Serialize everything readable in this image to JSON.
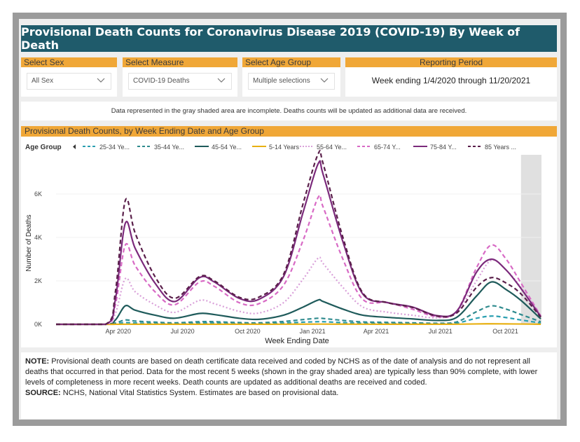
{
  "title": "Provisional Death Counts for Coronavirus Disease 2019 (COVID-19) By Week of Death",
  "filters": {
    "sex": {
      "label": "Select Sex",
      "value": "All Sex"
    },
    "measure": {
      "label": "Select Measure",
      "value": "COVID-19 Deaths"
    },
    "age_group": {
      "label": "Select Age Group",
      "value": "Multiple selections"
    },
    "period": {
      "label": "Reporting Period",
      "value": "Week ending 1/4/2020 through 11/20/2021"
    }
  },
  "notice": "Data represented in the gray shaded area are incomplete. Deaths counts will be updated as additional data are received.",
  "chart_header": "Provisional Death Counts, by Week Ending Date and Age Group",
  "note": {
    "note_label": "NOTE:",
    "note_text": " Provisional death counts are based on death certificate data received and coded by NCHS as of the date of analysis and do not represent all deaths that occurred in that period. Data for the most recent 5 weeks (shown in the gray shaded area) are typically less than 90% complete, with lower levels of completeness in more recent weeks.  Death counts are updated as additional deaths are received and coded.",
    "source_label": "SOURCE:",
    "source_text": " NCHS, National Vital Statistics System. Estimates are based on provisional data."
  },
  "chart_data": {
    "type": "line",
    "xlabel": "Week Ending Date",
    "ylabel": "Number of Deaths",
    "legend_title": "Age Group",
    "legend_placement": "top",
    "x_ticks": [
      "Apr 2020",
      "Jul 2020",
      "Oct 2020",
      "Jan 2021",
      "Apr 2021",
      "Jul 2021",
      "Oct 2021"
    ],
    "x_tick_dates": [
      "2020-04-01",
      "2020-07-01",
      "2020-10-01",
      "2021-01-01",
      "2021-04-01",
      "2021-07-01",
      "2021-10-01"
    ],
    "y_ticks": [
      "0K",
      "2K",
      "4K",
      "6K"
    ],
    "y_tick_values": [
      0,
      2000,
      4000,
      6000
    ],
    "ylim": [
      0,
      8000
    ],
    "xlim": [
      "2020-01-04",
      "2021-11-20"
    ],
    "shaded_region": {
      "start": "2021-10-23",
      "end": "2021-11-20",
      "color": "#e0e0e0"
    },
    "x": [
      "2020-01-04",
      "2020-03-14",
      "2020-03-28",
      "2020-04-11",
      "2020-04-25",
      "2020-05-23",
      "2020-06-20",
      "2020-07-25",
      "2020-08-15",
      "2020-09-19",
      "2020-10-17",
      "2020-11-21",
      "2020-12-19",
      "2021-01-09",
      "2021-01-16",
      "2021-02-13",
      "2021-03-13",
      "2021-04-17",
      "2021-05-22",
      "2021-06-26",
      "2021-07-24",
      "2021-08-21",
      "2021-09-11",
      "2021-10-02",
      "2021-10-23",
      "2021-11-20"
    ],
    "series": [
      {
        "name": "25-34 Ye...",
        "color": "#2a9fb0",
        "dash": "dash",
        "values": [
          0,
          0,
          30,
          80,
          60,
          40,
          25,
          60,
          60,
          35,
          30,
          60,
          100,
          120,
          120,
          80,
          50,
          40,
          30,
          20,
          60,
          280,
          380,
          310,
          200,
          60
        ]
      },
      {
        "name": "35-44 Ye...",
        "color": "#2f8b8e",
        "dash": "dash",
        "values": [
          0,
          0,
          60,
          200,
          150,
          100,
          70,
          120,
          120,
          80,
          70,
          130,
          220,
          280,
          270,
          180,
          110,
          90,
          70,
          50,
          110,
          580,
          850,
          700,
          450,
          120
        ]
      },
      {
        "name": "45-54 Ye...",
        "color": "#1f5b5b",
        "dash": "solid",
        "values": [
          0,
          0,
          200,
          850,
          650,
          420,
          280,
          500,
          450,
          280,
          230,
          420,
          800,
          1120,
          1050,
          700,
          420,
          320,
          250,
          180,
          320,
          1300,
          1950,
          1600,
          1100,
          250
        ]
      },
      {
        "name": "5-14 Years",
        "color": "#e8b012",
        "dash": "solid",
        "values": [
          0,
          0,
          2,
          6,
          5,
          4,
          3,
          5,
          5,
          4,
          4,
          6,
          8,
          10,
          10,
          8,
          6,
          5,
          5,
          4,
          6,
          18,
          25,
          20,
          14,
          5
        ]
      },
      {
        "name": "55-64 Ye...",
        "color": "#d9a0d9",
        "dash": "dot",
        "values": [
          0,
          0,
          500,
          2100,
          1500,
          900,
          550,
          1100,
          950,
          600,
          520,
          1000,
          2100,
          3050,
          2800,
          1700,
          800,
          560,
          420,
          300,
          550,
          2000,
          2950,
          2500,
          1700,
          400
        ]
      },
      {
        "name": "65-74 Y...",
        "color": "#d86ac5",
        "dash": "dash",
        "values": [
          0,
          0,
          900,
          3650,
          2700,
          1500,
          900,
          1950,
          1750,
          1000,
          950,
          1800,
          3900,
          5850,
          5400,
          3000,
          1150,
          1000,
          700,
          350,
          600,
          2600,
          3650,
          3000,
          1900,
          380
        ]
      },
      {
        "name": "75-84 Y...",
        "color": "#7b2a7b",
        "dash": "solid",
        "values": [
          0,
          0,
          1150,
          4650,
          3500,
          1900,
          1050,
          2150,
          1950,
          1200,
          1150,
          2200,
          5200,
          7400,
          6900,
          3800,
          1400,
          1000,
          800,
          400,
          600,
          2400,
          3000,
          2500,
          1650,
          350
        ]
      },
      {
        "name": "85 Years ...",
        "color": "#5a1f4a",
        "dash": "dash",
        "values": [
          0,
          0,
          1500,
          5700,
          4200,
          2200,
          1200,
          2200,
          2000,
          1250,
          1250,
          2300,
          5600,
          7850,
          7400,
          4000,
          1450,
          1000,
          780,
          380,
          520,
          1700,
          2150,
          1900,
          1400,
          330
        ]
      }
    ]
  }
}
